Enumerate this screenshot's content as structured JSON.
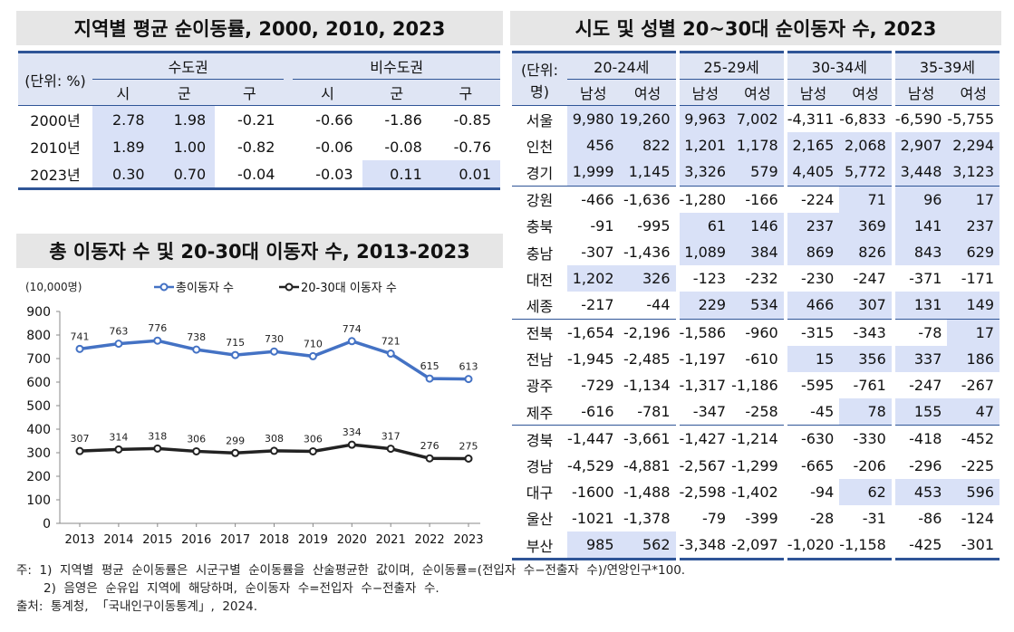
{
  "table1": {
    "title": "지역별 평균 순이동률, 2000, 2010, 2023",
    "unit": "(단위: %)",
    "group_capital": "수도권",
    "group_noncapital": "비수도권",
    "subcols": [
      "시",
      "군",
      "구",
      "시",
      "군",
      "구"
    ],
    "rows": [
      {
        "year": "2000년",
        "values": [
          "2.78",
          "1.98",
          "-0.21",
          "-0.66",
          "-1.86",
          "-0.85"
        ],
        "shaded": [
          true,
          true,
          false,
          false,
          false,
          false
        ]
      },
      {
        "year": "2010년",
        "values": [
          "1.89",
          "1.00",
          "-0.82",
          "-0.06",
          "-0.08",
          "-0.76"
        ],
        "shaded": [
          true,
          true,
          false,
          false,
          false,
          false
        ]
      },
      {
        "year": "2023년",
        "values": [
          "0.30",
          "0.70",
          "-0.04",
          "-0.03",
          "0.11",
          "0.01"
        ],
        "shaded": [
          true,
          true,
          false,
          false,
          true,
          true
        ]
      }
    ]
  },
  "table2": {
    "title": "시도 및 성별 20~30대 순이동자 수, 2023",
    "unit": "(단위: 명)",
    "age_groups": [
      "20-24세",
      "25-29세",
      "30-34세",
      "35-39세"
    ],
    "sexes": [
      "남성",
      "여성"
    ],
    "rows": [
      {
        "region": "서울",
        "values": [
          "9,980",
          "19,260",
          "9,963",
          "7,002",
          "-4,311",
          "-6,833",
          "-6,590",
          "-5,755"
        ],
        "shaded": [
          1,
          1,
          1,
          1,
          0,
          0,
          0,
          0
        ]
      },
      {
        "region": "인천",
        "values": [
          "456",
          "822",
          "1,201",
          "1,178",
          "2,165",
          "2,068",
          "2,907",
          "2,294"
        ],
        "shaded": [
          1,
          1,
          1,
          1,
          1,
          1,
          1,
          1
        ]
      },
      {
        "region": "경기",
        "values": [
          "1,999",
          "1,145",
          "3,326",
          "579",
          "4,405",
          "5,772",
          "3,448",
          "3,123"
        ],
        "shaded": [
          1,
          1,
          1,
          1,
          1,
          1,
          1,
          1
        ]
      },
      {
        "region": "강원",
        "values": [
          "-466",
          "-1,636",
          "-1,280",
          "-166",
          "-224",
          "71",
          "96",
          "17"
        ],
        "shaded": [
          0,
          0,
          0,
          0,
          0,
          1,
          1,
          1
        ]
      },
      {
        "region": "충북",
        "values": [
          "-91",
          "-995",
          "61",
          "146",
          "237",
          "369",
          "141",
          "237"
        ],
        "shaded": [
          0,
          0,
          1,
          1,
          1,
          1,
          1,
          1
        ]
      },
      {
        "region": "충남",
        "values": [
          "-307",
          "-1,436",
          "1,089",
          "384",
          "869",
          "826",
          "843",
          "629"
        ],
        "shaded": [
          0,
          0,
          1,
          1,
          1,
          1,
          1,
          1
        ]
      },
      {
        "region": "대전",
        "values": [
          "1,202",
          "326",
          "-123",
          "-232",
          "-230",
          "-247",
          "-371",
          "-171"
        ],
        "shaded": [
          1,
          1,
          0,
          0,
          0,
          0,
          0,
          0
        ]
      },
      {
        "region": "세종",
        "values": [
          "-217",
          "-44",
          "229",
          "534",
          "466",
          "307",
          "131",
          "149"
        ],
        "shaded": [
          0,
          0,
          1,
          1,
          1,
          1,
          1,
          1
        ]
      },
      {
        "region": "전북",
        "values": [
          "-1,654",
          "-2,196",
          "-1,586",
          "-960",
          "-315",
          "-343",
          "-78",
          "17"
        ],
        "shaded": [
          0,
          0,
          0,
          0,
          0,
          0,
          0,
          1
        ]
      },
      {
        "region": "전남",
        "values": [
          "-1,945",
          "-2,485",
          "-1,197",
          "-610",
          "15",
          "356",
          "337",
          "186"
        ],
        "shaded": [
          0,
          0,
          0,
          0,
          1,
          1,
          1,
          1
        ]
      },
      {
        "region": "광주",
        "values": [
          "-729",
          "-1,134",
          "-1,317",
          "-1,186",
          "-595",
          "-761",
          "-247",
          "-267"
        ],
        "shaded": [
          0,
          0,
          0,
          0,
          0,
          0,
          0,
          0
        ]
      },
      {
        "region": "제주",
        "values": [
          "-616",
          "-781",
          "-347",
          "-258",
          "-45",
          "78",
          "155",
          "47"
        ],
        "shaded": [
          0,
          0,
          0,
          0,
          0,
          1,
          1,
          1
        ]
      },
      {
        "region": "경북",
        "values": [
          "-1,447",
          "-3,661",
          "-1,427",
          "-1,214",
          "-630",
          "-330",
          "-418",
          "-452"
        ],
        "shaded": [
          0,
          0,
          0,
          0,
          0,
          0,
          0,
          0
        ]
      },
      {
        "region": "경남",
        "values": [
          "-4,529",
          "-4,881",
          "-2,567",
          "-1,299",
          "-665",
          "-206",
          "-296",
          "-225"
        ],
        "shaded": [
          0,
          0,
          0,
          0,
          0,
          0,
          0,
          0
        ]
      },
      {
        "region": "대구",
        "values": [
          "-1600",
          "-1,488",
          "-2,598",
          "-1,402",
          "-94",
          "62",
          "453",
          "596"
        ],
        "shaded": [
          0,
          0,
          0,
          0,
          0,
          1,
          1,
          1
        ]
      },
      {
        "region": "울산",
        "values": [
          "-1021",
          "-1,378",
          "-79",
          "-399",
          "-28",
          "-31",
          "-86",
          "-124"
        ],
        "shaded": [
          0,
          0,
          0,
          0,
          0,
          0,
          0,
          0
        ]
      },
      {
        "region": "부산",
        "values": [
          "985",
          "562",
          "-3,348",
          "-2,097",
          "-1,020",
          "-1,158",
          "-425",
          "-301"
        ],
        "shaded": [
          1,
          1,
          0,
          0,
          0,
          0,
          0,
          0
        ]
      }
    ],
    "separator_before": [
      3,
      8,
      12
    ]
  },
  "chart_title": "총 이동자 수 및 20-30대 이동자 수, 2013-2023",
  "colors": {
    "header_blue": "#2f5597",
    "shade": "#d9e1f7",
    "series_total": "#4472c4",
    "series_youth": "#222222"
  },
  "chart_data": {
    "type": "line",
    "title": "총 이동자 수 및 20-30대 이동자 수, 2013-2023",
    "ylabel": "(10,000명)",
    "xlabel": "",
    "x": [
      "2013",
      "2014",
      "2015",
      "2016",
      "2017",
      "2018",
      "2019",
      "2020",
      "2021",
      "2022",
      "2023"
    ],
    "ylim": [
      0,
      900
    ],
    "yticks": [
      0,
      100,
      200,
      300,
      400,
      500,
      600,
      700,
      800,
      900
    ],
    "legend_position": "top",
    "grid": false,
    "series": [
      {
        "name": "총이동자 수",
        "values": [
          741,
          763,
          776,
          738,
          715,
          730,
          710,
          774,
          721,
          615,
          613
        ]
      },
      {
        "name": "20-30대 이동자 수",
        "values": [
          307,
          314,
          318,
          306,
          299,
          308,
          306,
          334,
          317,
          276,
          275
        ]
      }
    ]
  },
  "notes": [
    "주:  1)  지역별  평균  순이동률은  시군구별  순이동률을  산술평균한  값이며,  순이동률=(전입자  수−전출자  수)/연앙인구*100.",
    "       2)  음영은  순유입  지역에  해당하며,  순이동자  수=전입자  수−전출자  수.",
    "출처:  통계청,  「국내인구이동통계」,  2024."
  ]
}
